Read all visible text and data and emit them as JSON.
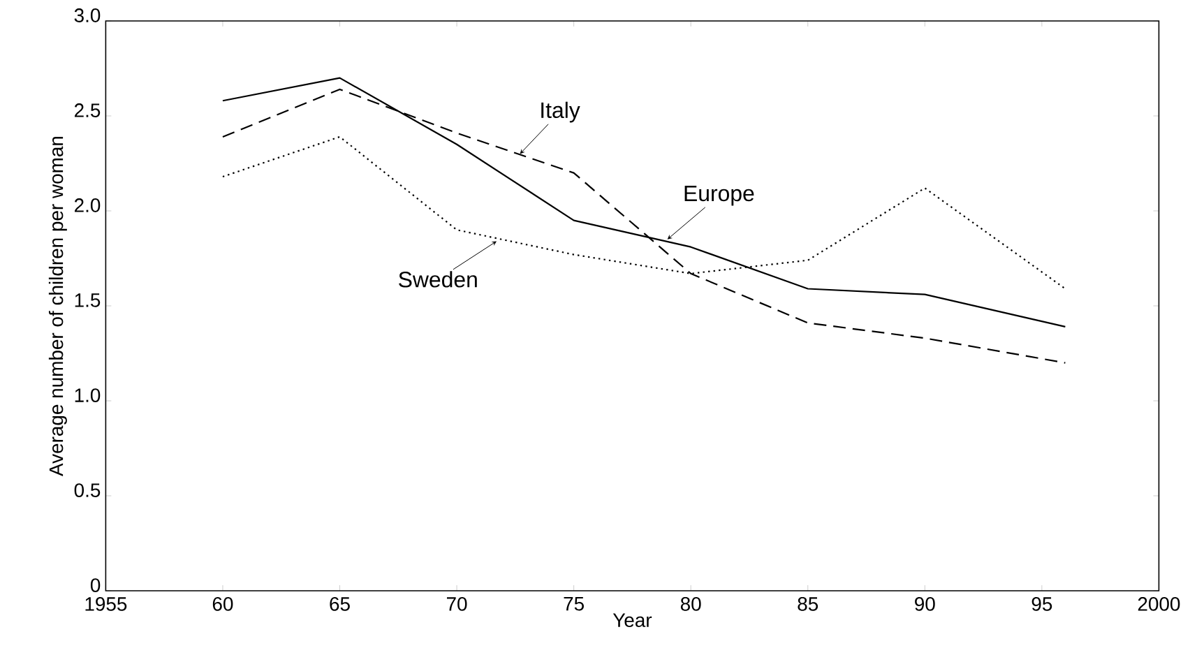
{
  "chart_data": {
    "type": "line",
    "xlabel": "Year",
    "ylabel": "Average number of children per woman",
    "x": [
      1960,
      1965,
      1970,
      1975,
      1980,
      1985,
      1990,
      1996
    ],
    "series": [
      {
        "color": "#000000",
        "line_style": "solid",
        "values": [
          2.58,
          2.7,
          2.35,
          1.95,
          1.81,
          1.59,
          1.56,
          1.39
        ]
      },
      {
        "color": "#000000",
        "line_style": "dashed",
        "values": [
          2.39,
          2.64,
          2.41,
          2.2,
          1.67,
          1.41,
          1.33,
          1.2
        ]
      },
      {
        "color": "#000000",
        "line_style": "dotted",
        "values": [
          2.18,
          2.39,
          1.9,
          1.77,
          1.67,
          1.74,
          2.12,
          1.59
        ]
      }
    ],
    "annotations": [
      {
        "text": "Italy",
        "x": 1972.7,
        "y": 2.3
      },
      {
        "text": "Europe",
        "x": 1979.0,
        "y": 1.85
      },
      {
        "text": "Sweden",
        "x": 1971.7,
        "y": 1.84
      }
    ],
    "xlim": [
      1955,
      2000
    ],
    "ylim": [
      0,
      3
    ],
    "xticks": [
      1955,
      {
        "value": 1960,
        "label": "60"
      },
      {
        "value": 1965,
        "label": "65"
      },
      {
        "value": 1970,
        "label": "70"
      },
      {
        "value": 1975,
        "label": "75"
      },
      {
        "value": 1980,
        "label": "80"
      },
      {
        "value": 1985,
        "label": "85"
      },
      {
        "value": 1990,
        "label": "90"
      },
      {
        "value": 1995,
        "label": "95"
      },
      2000
    ],
    "yticks": [
      0,
      0.5,
      {
        "value": 1,
        "label": "1.0"
      },
      1.5,
      {
        "value": 2,
        "label": "2.0"
      },
      2.5,
      {
        "value": 3,
        "label": "3.0"
      }
    ],
    "marker": "none"
  }
}
